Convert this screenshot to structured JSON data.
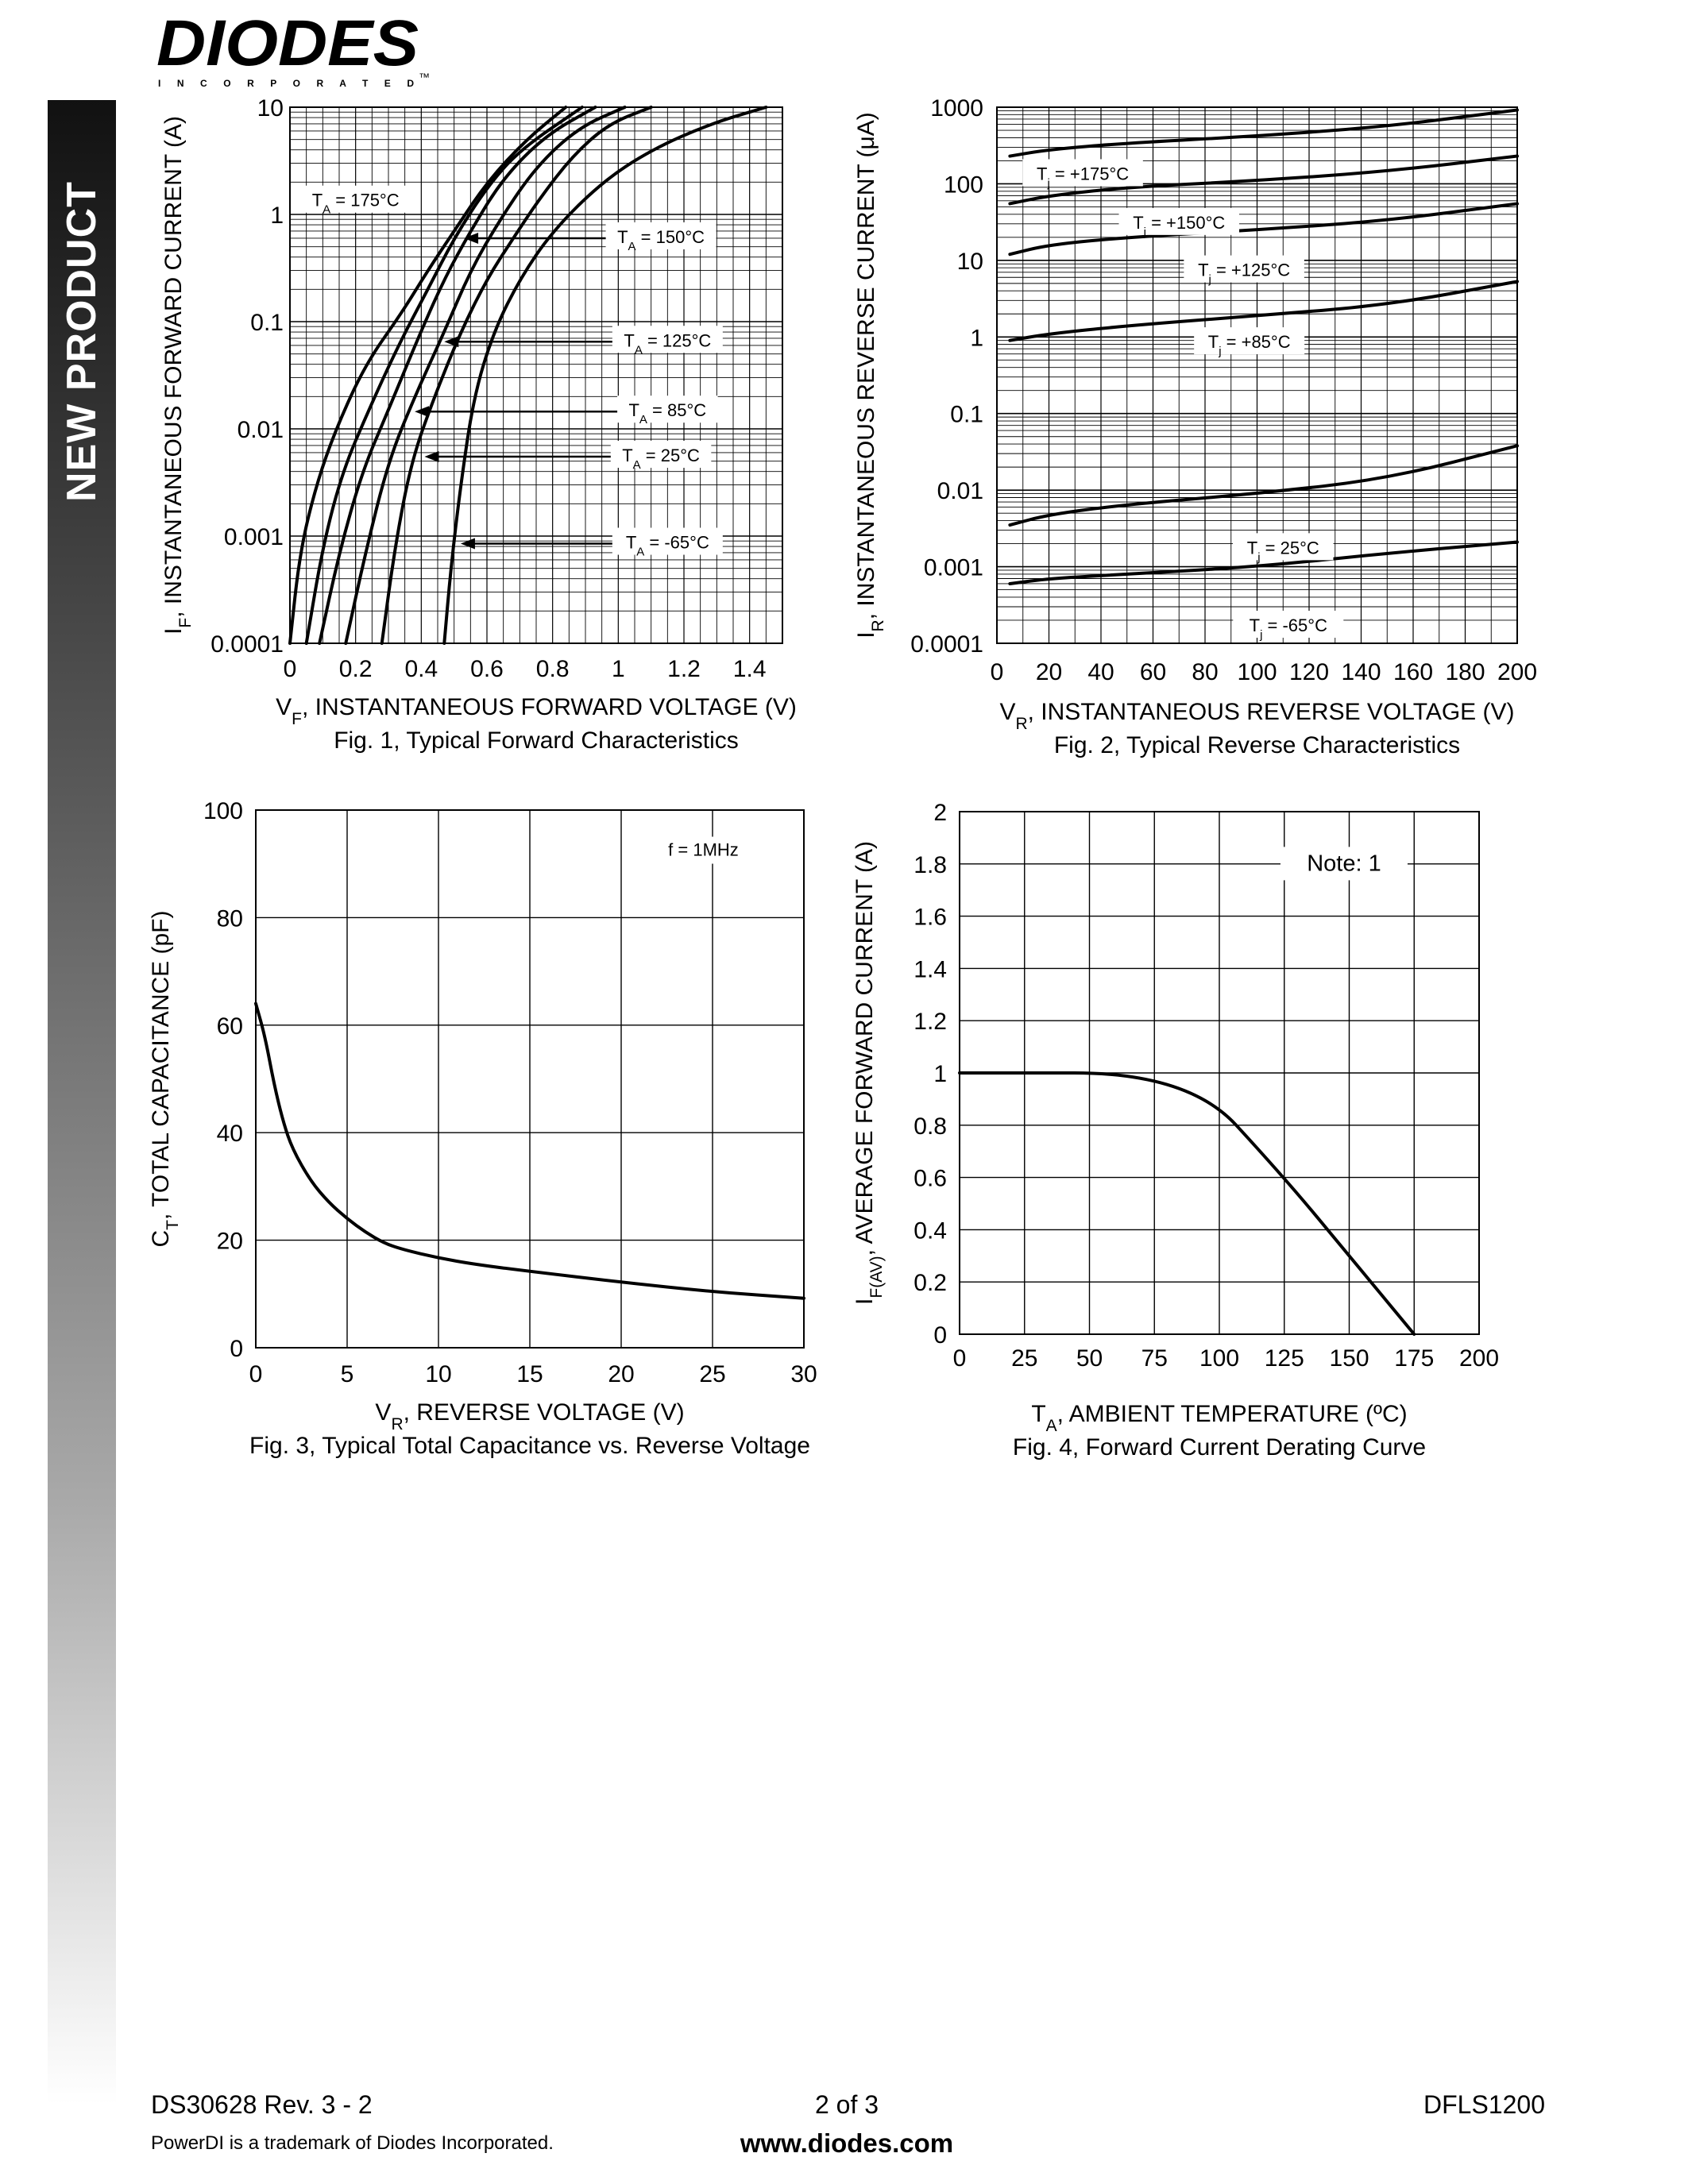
{
  "header": {
    "logo_main": "DIODES",
    "logo_sub": "I N C O R P O R A T E D",
    "logo_tm": "™"
  },
  "sidebar": {
    "label": "NEW PRODUCT"
  },
  "footer": {
    "doc_id": "DS30628 Rev. 3 - 2",
    "page": "2 of 3",
    "part": "DFLS1200",
    "trademark": "PowerDI is a trademark of Diodes Incorporated.",
    "website": "www.diodes.com"
  },
  "colors": {
    "ink": "#000000",
    "grid": "#000000",
    "sidebar_top": "#111111",
    "sidebar_bottom": "#ffffff"
  },
  "chart_data": [
    {
      "id": "fig1",
      "type": "line",
      "caption": "Fig. 1, Typical Forward Characteristics",
      "ylabel_main": "I",
      "ylabel_sub": "F",
      "ylabel_rest": ", INSTANTANEOUS FORWARD CURRENT (A)",
      "xlabel_main": "V",
      "xlabel_sub": "F",
      "xlabel_rest": ", INSTANTANEOUS FORWARD VOLTAGE (V)",
      "x_range": [
        0,
        1.5
      ],
      "y_range": [
        0.0001,
        10
      ],
      "y_scale": "log",
      "grid": "dense log",
      "x_ticks": [
        0,
        0.2,
        0.4,
        0.6,
        0.8,
        1,
        1.2,
        1.4
      ],
      "x_tick_labels": [
        "0",
        "0.2",
        "0.4",
        "0.6",
        "0.8",
        "1",
        "1.2",
        "1.4"
      ],
      "y_ticks": [
        10,
        1,
        0.1,
        0.01,
        0.001,
        0.0001
      ],
      "y_tick_labels": [
        "10",
        "1",
        "0.1",
        "0.01",
        "0.001",
        "0.0001"
      ],
      "series": [
        {
          "name": "T_A = 175°C",
          "points": [
            [
              0.0,
              0.0001
            ],
            [
              0.03,
              0.0007
            ],
            [
              0.08,
              0.003
            ],
            [
              0.14,
              0.01
            ],
            [
              0.23,
              0.04
            ],
            [
              0.34,
              0.12
            ],
            [
              0.42,
              0.3
            ],
            [
              0.5,
              0.7
            ],
            [
              0.6,
              2
            ],
            [
              0.72,
              5
            ],
            [
              0.84,
              10
            ]
          ]
        },
        {
          "name": "T_A = 150°C",
          "points": [
            [
              0.05,
              0.0001
            ],
            [
              0.1,
              0.0008
            ],
            [
              0.16,
              0.004
            ],
            [
              0.24,
              0.015
            ],
            [
              0.33,
              0.06
            ],
            [
              0.42,
              0.2
            ],
            [
              0.5,
              0.6
            ],
            [
              0.6,
              1.8
            ],
            [
              0.7,
              4
            ],
            [
              0.89,
              10
            ]
          ]
        },
        {
          "name": "T_A = 125°C",
          "points": [
            [
              0.09,
              0.0001
            ],
            [
              0.15,
              0.0007
            ],
            [
              0.22,
              0.004
            ],
            [
              0.3,
              0.015
            ],
            [
              0.39,
              0.07
            ],
            [
              0.47,
              0.25
            ],
            [
              0.55,
              0.7
            ],
            [
              0.65,
              2.2
            ],
            [
              0.78,
              5.5
            ],
            [
              0.93,
              10
            ]
          ]
        },
        {
          "name": "T_A = 85°C",
          "points": [
            [
              0.17,
              0.0001
            ],
            [
              0.23,
              0.0007
            ],
            [
              0.3,
              0.005
            ],
            [
              0.38,
              0.02
            ],
            [
              0.47,
              0.08
            ],
            [
              0.55,
              0.3
            ],
            [
              0.64,
              0.9
            ],
            [
              0.75,
              2.8
            ],
            [
              0.88,
              6.5
            ],
            [
              1.02,
              10
            ]
          ]
        },
        {
          "name": "T_A = 25°C",
          "points": [
            [
              0.28,
              0.0001
            ],
            [
              0.32,
              0.0008
            ],
            [
              0.37,
              0.005
            ],
            [
              0.44,
              0.02
            ],
            [
              0.52,
              0.08
            ],
            [
              0.6,
              0.25
            ],
            [
              0.68,
              0.6
            ],
            [
              0.76,
              1.4
            ],
            [
              0.86,
              3.5
            ],
            [
              0.97,
              7
            ],
            [
              1.1,
              10
            ]
          ]
        },
        {
          "name": "T_A = -65°C",
          "points": [
            [
              0.47,
              0.0001
            ],
            [
              0.49,
              0.0005
            ],
            [
              0.52,
              0.003
            ],
            [
              0.56,
              0.02
            ],
            [
              0.62,
              0.08
            ],
            [
              0.7,
              0.25
            ],
            [
              0.8,
              0.7
            ],
            [
              0.95,
              2
            ],
            [
              1.1,
              4
            ],
            [
              1.28,
              7
            ],
            [
              1.45,
              10
            ]
          ]
        }
      ],
      "annotations": [
        {
          "text": "T_A = 175°C",
          "sub": "A",
          "pre": "T",
          "post": " = 175°C",
          "x": 0.2,
          "y": 1.32,
          "arrow_to": null
        },
        {
          "text": "T_A = 150°C",
          "sub": "A",
          "pre": "T",
          "post": " = 150°C",
          "x": 1.13,
          "y": 0.6,
          "arrow_to": [
            0.53,
            0.6
          ]
        },
        {
          "text": "T_A = 125°C",
          "sub": "A",
          "pre": "T",
          "post": " = 125°C",
          "x": 1.15,
          "y": 0.065,
          "arrow_to": [
            0.47,
            0.065
          ]
        },
        {
          "text": "T_A = 85°C",
          "sub": "A",
          "pre": "T",
          "post": " = 85°C",
          "x": 1.15,
          "y": 0.0145,
          "arrow_to": [
            0.38,
            0.0145
          ]
        },
        {
          "text": "T_A = 25°C",
          "sub": "A",
          "pre": "T",
          "post": " = 25°C",
          "x": 1.13,
          "y": 0.0055,
          "arrow_to": [
            0.41,
            0.0055
          ]
        },
        {
          "text": "T_A = -65°C",
          "sub": "A",
          "pre": "T",
          "post": " = -65°C",
          "x": 1.15,
          "y": 0.00085,
          "arrow_to": [
            0.52,
            0.00085
          ]
        }
      ]
    },
    {
      "id": "fig2",
      "type": "line",
      "caption": "Fig. 2, Typical Reverse Characteristics",
      "ylabel_main": "I",
      "ylabel_sub": "R",
      "ylabel_rest": ", INSTANTANEOUS REVERSE CURRENT (μA)",
      "xlabel_main": "V",
      "xlabel_sub": "R",
      "xlabel_rest": ", INSTANTANEOUS REVERSE VOLTAGE (V)",
      "x_range": [
        0,
        200
      ],
      "y_range": [
        0.0001,
        1000
      ],
      "y_scale": "log",
      "grid": "dense log",
      "x_ticks": [
        0,
        20,
        40,
        60,
        80,
        100,
        120,
        140,
        160,
        180,
        200
      ],
      "x_tick_labels": [
        "0",
        "20",
        "40",
        "60",
        "80",
        "100",
        "120",
        "140",
        "160",
        "180",
        "200"
      ],
      "y_ticks": [
        1000,
        100,
        10,
        1,
        0.1,
        0.01,
        0.001,
        0.0001
      ],
      "y_tick_labels": [
        "1000",
        "100",
        "10",
        "1",
        "0.1",
        "0.01",
        "0.001",
        "0.0001"
      ],
      "series": [
        {
          "name": "T_j = +175°C",
          "points": [
            [
              5,
              230
            ],
            [
              20,
              280
            ],
            [
              50,
              340
            ],
            [
              100,
              420
            ],
            [
              150,
              560
            ],
            [
              200,
              920
            ]
          ]
        },
        {
          "name": "T_j = +150°C",
          "points": [
            [
              5,
              55
            ],
            [
              20,
              70
            ],
            [
              50,
              90
            ],
            [
              100,
              110
            ],
            [
              150,
              145
            ],
            [
              200,
              230
            ]
          ]
        },
        {
          "name": "T_j = +125°C",
          "points": [
            [
              5,
              12
            ],
            [
              20,
              16
            ],
            [
              50,
              20
            ],
            [
              100,
              25
            ],
            [
              150,
              33
            ],
            [
              200,
              55
            ]
          ]
        },
        {
          "name": "T_j = +85°C",
          "points": [
            [
              5,
              0.9
            ],
            [
              20,
              1.1
            ],
            [
              50,
              1.4
            ],
            [
              100,
              1.9
            ],
            [
              150,
              2.6
            ],
            [
              200,
              5.3
            ]
          ]
        },
        {
          "name": "T_j = 25°C",
          "points": [
            [
              5,
              0.0035
            ],
            [
              20,
              0.0048
            ],
            [
              50,
              0.0065
            ],
            [
              100,
              0.009
            ],
            [
              150,
              0.014
            ],
            [
              200,
              0.038
            ]
          ]
        },
        {
          "name": "T_j = -65°C",
          "points": [
            [
              5,
              0.0006
            ],
            [
              20,
              0.0007
            ],
            [
              50,
              0.0008
            ],
            [
              100,
              0.001
            ],
            [
              150,
              0.0015
            ],
            [
              200,
              0.0021
            ]
          ]
        }
      ],
      "annotations": [
        {
          "text": "T_j = +175°C",
          "pre": "T",
          "sub": "j",
          "post": " = +175°C",
          "x": 33,
          "y": 130
        },
        {
          "text": "T_j = +150°C",
          "pre": "T",
          "sub": "j",
          "post": " = +150°C",
          "x": 70,
          "y": 30
        },
        {
          "text": "T_j = +125°C",
          "pre": "T",
          "sub": "j",
          "post": " = +125°C",
          "x": 95,
          "y": 7.2
        },
        {
          "text": "T_j = +85°C",
          "pre": "T",
          "sub": "j",
          "post": " = +85°C",
          "x": 97,
          "y": 0.83
        },
        {
          "text": "T_j = 25°C",
          "pre": "T",
          "sub": "j",
          "post": " = 25°C",
          "x": 110,
          "y": 0.0017
        },
        {
          "text": "T_j = -65°C",
          "pre": "T",
          "sub": "j",
          "post": " = -65°C",
          "x": 112,
          "y": 0.000165
        }
      ]
    },
    {
      "id": "fig3",
      "type": "line",
      "caption": "Fig. 3, Typical Total Capacitance vs. Reverse Voltage",
      "ylabel_main": "C",
      "ylabel_sub": "T",
      "ylabel_rest": ", TOTAL CAPACITANCE (pF)",
      "xlabel_main": "V",
      "xlabel_sub": "R",
      "xlabel_rest": ", REVERSE VOLTAGE (V)",
      "x_range": [
        0,
        30
      ],
      "y_range": [
        0,
        100
      ],
      "y_scale": "linear",
      "grid": true,
      "x_ticks": [
        0,
        5,
        10,
        15,
        20,
        25,
        30
      ],
      "x_tick_labels": [
        "0",
        "5",
        "10",
        "15",
        "20",
        "25",
        "30"
      ],
      "y_ticks": [
        0,
        20,
        40,
        60,
        80,
        100
      ],
      "y_tick_labels": [
        "0",
        "20",
        "40",
        "60",
        "80",
        "100"
      ],
      "series": [
        {
          "points": [
            [
              0,
              64
            ],
            [
              0.5,
              58
            ],
            [
              1,
              49
            ],
            [
              1.5,
              42
            ],
            [
              2,
              37
            ],
            [
              3,
              31
            ],
            [
              4,
              27
            ],
            [
              5,
              24
            ],
            [
              6,
              21.5
            ],
            [
              7,
              19.5
            ],
            [
              8,
              18.3
            ],
            [
              10,
              16.7
            ],
            [
              12,
              15.5
            ],
            [
              15,
              14.2
            ],
            [
              20,
              12.2
            ],
            [
              25,
              10.4
            ],
            [
              30,
              9.2
            ]
          ]
        }
      ],
      "annotation": "f = 1MHz"
    },
    {
      "id": "fig4",
      "type": "line",
      "caption": "Fig. 4, Forward Current Derating Curve",
      "ylabel_main": "I",
      "ylabel_sub": "F(AV)",
      "ylabel_rest": ", AVERAGE FORWARD CURRENT (A)",
      "xlabel_main": "T",
      "xlabel_sub": "A",
      "xlabel_rest": ", AMBIENT TEMPERATURE (ºC)",
      "x_range": [
        0,
        200
      ],
      "y_range": [
        0,
        2
      ],
      "y_scale": "linear",
      "grid": true,
      "x_ticks": [
        0,
        25,
        50,
        75,
        100,
        125,
        150,
        175,
        200
      ],
      "x_tick_labels": [
        "0",
        "25",
        "50",
        "75",
        "100",
        "125",
        "150",
        "175",
        "200"
      ],
      "y_ticks": [
        0,
        0.2,
        0.4,
        0.6,
        0.8,
        1,
        1.2,
        1.4,
        1.6,
        1.8,
        2
      ],
      "y_tick_labels": [
        "0",
        "0.2",
        "0.4",
        "0.6",
        "0.8",
        "1",
        "1.2",
        "1.4",
        "1.6",
        "1.8",
        "2"
      ],
      "series": [
        {
          "points": [
            [
              0,
              1
            ],
            [
              88,
              1
            ],
            [
              125,
              0.6
            ],
            [
              150,
              0.3
            ],
            [
              175,
              0
            ]
          ]
        }
      ],
      "annotation": "Note: 1"
    }
  ]
}
